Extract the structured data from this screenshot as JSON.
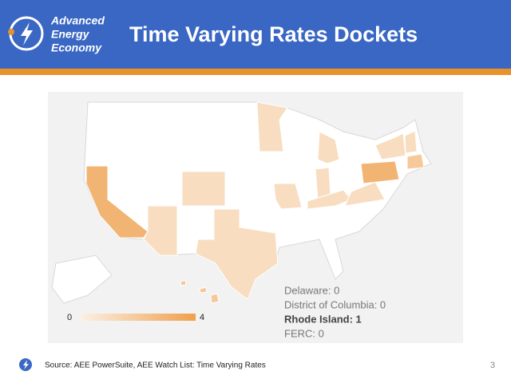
{
  "header": {
    "logo": [
      "Advanced",
      "Energy",
      "Economy"
    ],
    "title": "Time Varying Rates Dockets"
  },
  "map": {
    "legend": {
      "min": 0,
      "max": 4,
      "color_low": "#fbf1e6",
      "color_high": "#efa04c"
    },
    "regions": [
      3,
      1,
      1,
      1,
      1,
      1,
      1,
      1,
      1,
      1,
      1,
      3,
      2,
      1,
      2,
      2,
      2
    ],
    "notes": [
      {
        "text": "Delaware: 0",
        "bold": false
      },
      {
        "text": "District of Columbia: 0",
        "bold": false
      },
      {
        "text": "Rhode Island: 1",
        "bold": true
      },
      {
        "text": "FERC: 0",
        "bold": false
      }
    ]
  },
  "footer": {
    "source": "Source: AEE PowerSuite, AEE Watch List: Time Varying Rates",
    "page": "3"
  }
}
